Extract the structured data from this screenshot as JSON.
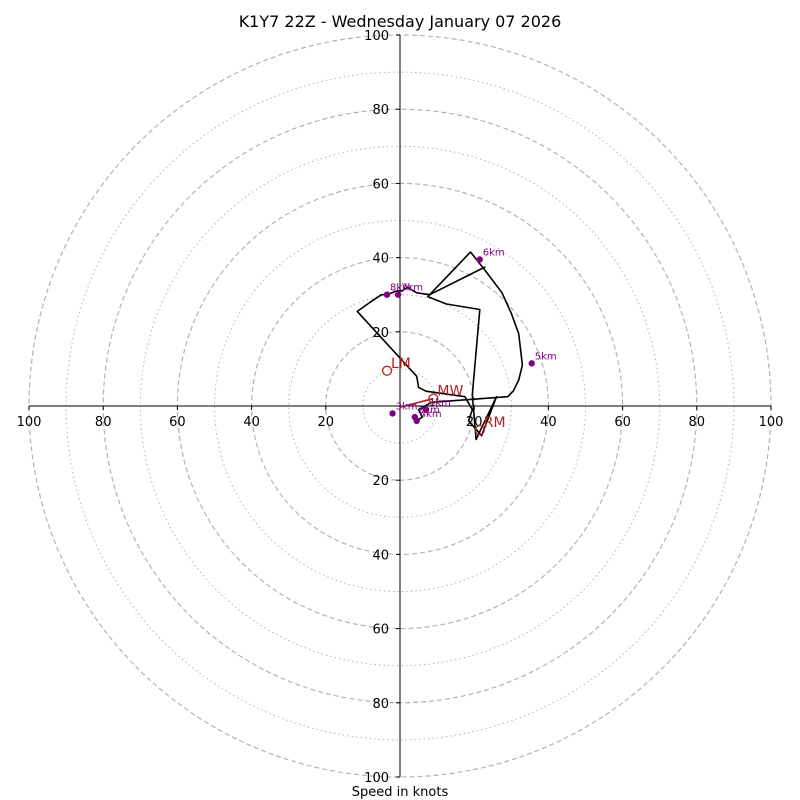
{
  "chart_data": {
    "type": "hodograph",
    "title": "K1Y7 22Z - Wednesday January 07 2026",
    "xlabel": "Speed in knots",
    "ring_max": 100,
    "major_rings": [
      20,
      40,
      60,
      80,
      100
    ],
    "minor_rings": [
      10,
      30,
      50,
      70,
      90
    ],
    "x_tick_labels": [
      "100",
      "80",
      "60",
      "40",
      "20",
      "20",
      "40",
      "60",
      "80",
      "100"
    ],
    "y_tick_labels": [
      "100",
      "80",
      "60",
      "40",
      "20",
      "20",
      "40",
      "60",
      "80",
      "100"
    ],
    "hodograph_trace": [
      [
        4.5,
        -4.0
      ],
      [
        6.0,
        -3.0
      ],
      [
        5.0,
        -1.0
      ],
      [
        8.5,
        1.0
      ],
      [
        29.0,
        2.5
      ],
      [
        30.5,
        4.0
      ],
      [
        32.0,
        7.0
      ],
      [
        33.0,
        11.0
      ],
      [
        32.0,
        19.5
      ],
      [
        30.0,
        25.0
      ],
      [
        27.5,
        30.5
      ],
      [
        23.0,
        36.5
      ],
      [
        19.0,
        41.5
      ],
      [
        8.0,
        30.0
      ],
      [
        7.5,
        29.5
      ],
      [
        12.5,
        27.5
      ],
      [
        21.5,
        26.0
      ],
      [
        19.5,
        3.0
      ],
      [
        20.5,
        -9.0
      ],
      [
        26.0,
        2.5
      ],
      [
        22.0,
        -8.0
      ],
      [
        18.5,
        -4.0
      ],
      [
        19.5,
        -1.0
      ],
      [
        17.5,
        2.5
      ],
      [
        7.0,
        4.0
      ],
      [
        5.0,
        5.0
      ],
      [
        4.5,
        8.0
      ],
      [
        -11.5,
        25.5
      ],
      [
        -8.0,
        28.0
      ],
      [
        -5.0,
        30.0
      ],
      [
        -3.5,
        30.0
      ],
      [
        -1.0,
        31.0
      ],
      [
        0.5,
        31.0
      ],
      [
        2.0,
        32.0
      ],
      [
        4.5,
        30.5
      ],
      [
        8.0,
        30.0
      ],
      [
        23.0,
        37.5
      ]
    ],
    "height_points": [
      {
        "label": "1km",
        "u": 7.0,
        "v": -1.0
      },
      {
        "label": "2km",
        "u": 4.0,
        "v": -3.0
      },
      {
        "label": "3km",
        "u": -2.0,
        "v": -2.0
      },
      {
        "label": "4km",
        "u": 4.5,
        "v": -4.0
      },
      {
        "label": "5km",
        "u": 35.5,
        "v": 11.5
      },
      {
        "label": "6km",
        "u": 21.5,
        "v": 39.5
      },
      {
        "label": "7km",
        "u": -0.5,
        "v": 30.0
      },
      {
        "label": "8km",
        "u": -3.5,
        "v": 30.0
      }
    ],
    "storm_vectors": [
      {
        "label": "RM",
        "u": 21.5,
        "v": -6.5,
        "color": "#b22222"
      },
      {
        "label": "LM",
        "u": -3.5,
        "v": 9.5,
        "color": "#b22222"
      },
      {
        "label": "MW",
        "u": 9.0,
        "v": 2.0,
        "color": "#b22222"
      }
    ],
    "colors": {
      "trace": "#000000",
      "height_points": "#800080",
      "storm_vectors": "#b22222",
      "rings": "#b3b3b3",
      "axes": "#000000"
    }
  }
}
